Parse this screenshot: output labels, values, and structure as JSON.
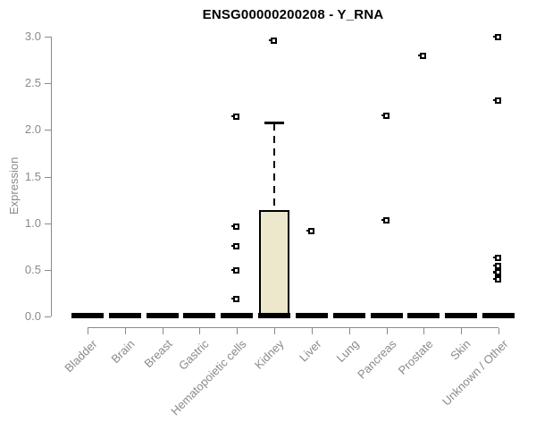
{
  "title": "ENSG00000200208 - Y_RNA",
  "colors": {
    "box_fill": "#ede8cc",
    "axis_gray": "#8a8a8a",
    "data_black": "#000000",
    "background": "#ffffff"
  },
  "chart_data": {
    "type": "boxplot",
    "title": "ENSG00000200208 - Y_RNA",
    "xlabel": "",
    "ylabel": "Expression",
    "ylim": [
      0.0,
      3.0
    ],
    "yticks": [
      0.0,
      0.5,
      1.0,
      1.5,
      2.0,
      2.5,
      3.0
    ],
    "ytick_labels": [
      "0.0",
      "0.5",
      "1.0",
      "1.5",
      "2.0",
      "2.5",
      "3.0"
    ],
    "grid": false,
    "legend": "none",
    "categories": [
      "Bladder",
      "Brain",
      "Breast",
      "Gastric",
      "Hematopoietic cells",
      "Kidney",
      "Liver",
      "Lung",
      "Pancreas",
      "Prostate",
      "Skin",
      "Unknown / Other"
    ],
    "boxes": [
      {
        "category": "Bladder",
        "whisker_low": 0,
        "q1": 0,
        "median": 0,
        "q3": 0,
        "whisker_high": 0,
        "outliers": []
      },
      {
        "category": "Brain",
        "whisker_low": 0,
        "q1": 0,
        "median": 0,
        "q3": 0,
        "whisker_high": 0,
        "outliers": []
      },
      {
        "category": "Breast",
        "whisker_low": 0,
        "q1": 0,
        "median": 0,
        "q3": 0,
        "whisker_high": 0,
        "outliers": []
      },
      {
        "category": "Gastric",
        "whisker_low": 0,
        "q1": 0,
        "median": 0,
        "q3": 0,
        "whisker_high": 0,
        "outliers": []
      },
      {
        "category": "Hematopoietic cells",
        "whisker_low": 0,
        "q1": 0,
        "median": 0,
        "q3": 0,
        "whisker_high": 0,
        "outliers": [
          0.18,
          0.49,
          0.75,
          0.96,
          2.14
        ]
      },
      {
        "category": "Kidney",
        "whisker_low": 0,
        "q1": 0,
        "median": 0,
        "q3": 1.14,
        "whisker_high": 2.07,
        "outliers": [
          2.95
        ]
      },
      {
        "category": "Liver",
        "whisker_low": 0,
        "q1": 0,
        "median": 0,
        "q3": 0,
        "whisker_high": 0,
        "outliers": [
          0.91
        ]
      },
      {
        "category": "Lung",
        "whisker_low": 0,
        "q1": 0,
        "median": 0,
        "q3": 0,
        "whisker_high": 0,
        "outliers": []
      },
      {
        "category": "Pancreas",
        "whisker_low": 0,
        "q1": 0,
        "median": 0,
        "q3": 0,
        "whisker_high": 0,
        "outliers": [
          1.03,
          2.15
        ]
      },
      {
        "category": "Prostate",
        "whisker_low": 0,
        "q1": 0,
        "median": 0,
        "q3": 0,
        "whisker_high": 0,
        "outliers": [
          2.79
        ]
      },
      {
        "category": "Skin",
        "whisker_low": 0,
        "q1": 0,
        "median": 0,
        "q3": 0,
        "whisker_high": 0,
        "outliers": []
      },
      {
        "category": "Unknown / Other",
        "whisker_low": 0,
        "q1": 0,
        "median": 0,
        "q3": 0,
        "whisker_high": 0,
        "outliers": [
          0.39,
          0.46,
          0.47,
          0.54,
          0.62,
          2.31,
          2.99
        ]
      }
    ]
  }
}
